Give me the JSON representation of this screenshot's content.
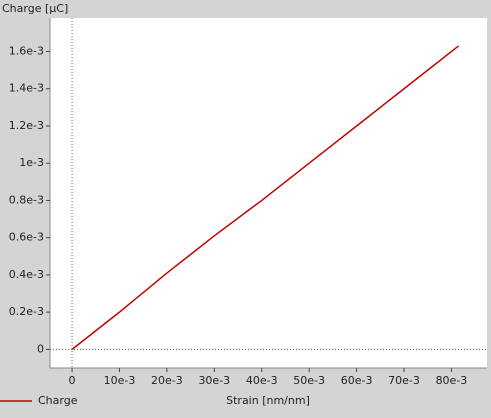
{
  "chart_data": {
    "type": "line",
    "y_label": "Charge [µC]",
    "x_label": "Strain [nm/nm]",
    "series": [
      {
        "name": "Charge",
        "color": "#c00000",
        "x": [
          0,
          0.005,
          0.01,
          0.02,
          0.03,
          0.04,
          0.05,
          0.06,
          0.07,
          0.0815
        ],
        "values": [
          0,
          0.0001,
          0.0002,
          0.00041,
          0.00061,
          0.0008,
          0.001,
          0.0012,
          0.0014,
          0.00163
        ]
      }
    ],
    "xlim": [
      -0.00465,
      0.0875
    ],
    "ylim": [
      -0.0001,
      0.00178
    ],
    "xticks": [
      0,
      {
        "value": 0.01,
        "label": "10e-3"
      },
      {
        "value": 0.02,
        "label": "20e-3"
      },
      {
        "value": 0.03,
        "label": "30e-3"
      },
      {
        "value": 0.04,
        "label": "40e-3"
      },
      {
        "value": 0.05,
        "label": "50e-3"
      },
      {
        "value": 0.06,
        "label": "60e-3"
      },
      {
        "value": 0.07,
        "label": "70e-3"
      },
      {
        "value": 0.08,
        "label": "80e-3"
      }
    ],
    "yticks": [
      0,
      {
        "value": 0.0002,
        "label": "0.2e-3"
      },
      {
        "value": 0.0004,
        "label": "0.4e-3"
      },
      {
        "value": 0.0006,
        "label": "0.6e-3"
      },
      {
        "value": 0.0008,
        "label": "0.8e-3"
      },
      {
        "value": 0.001,
        "label": "1e-3"
      },
      {
        "value": 0.0012,
        "label": "1.2e-3"
      },
      {
        "value": 0.0014,
        "label": "1.4e-3"
      },
      {
        "value": 0.0016,
        "label": "1.6e-3"
      }
    ],
    "grid": false
  }
}
